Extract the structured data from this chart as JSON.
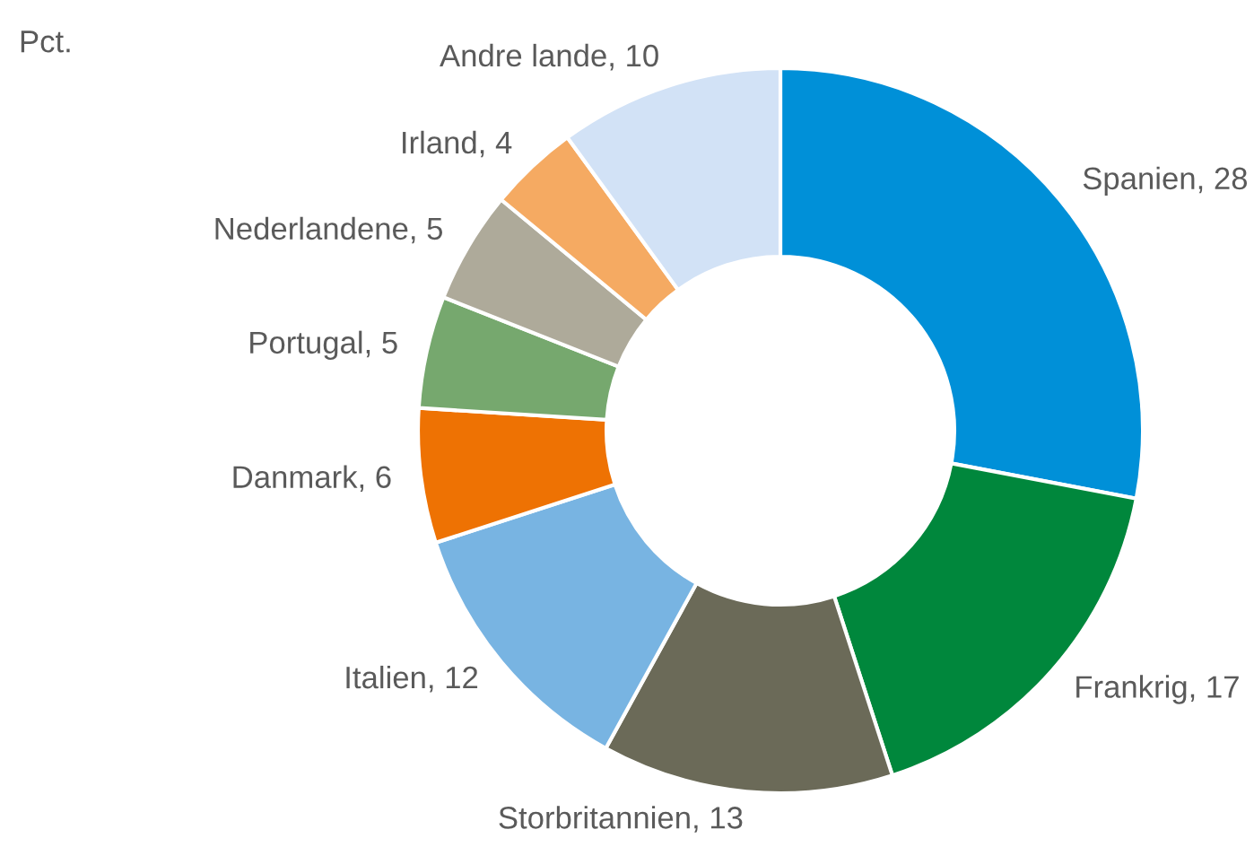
{
  "chart_data": {
    "type": "donut",
    "categories": [
      "Spanien, 28",
      "Frankrig, 17",
      "Storbritannien, 13",
      "Italien, 12",
      "Danmark, 6",
      "Portugal, 5",
      "Nederlandene, 5",
      "Irland, 4",
      "Andre lande, 10"
    ],
    "values": [
      28,
      17,
      13,
      12,
      6,
      5,
      5,
      4,
      10
    ],
    "colors": [
      "#0090d8",
      "#00873c",
      "#6b6a58",
      "#78b4e2",
      "#ee7203",
      "#76a86e",
      "#aeaa9a",
      "#f5aa62",
      "#d2e2f6"
    ],
    "annotations": [
      "Pct."
    ]
  }
}
